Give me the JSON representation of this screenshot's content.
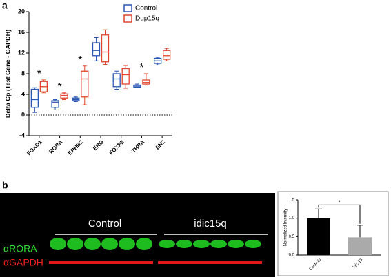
{
  "chart_data": [
    {
      "type": "box",
      "panel_label": "a",
      "y_label": "Delta Cp (Test Gene - GAPDH)",
      "categories": [
        "FOXO1",
        "RORA",
        "EPHB2",
        "ERG",
        "FOXP2",
        "THRA",
        "EN2"
      ],
      "series": [
        {
          "name": "Control",
          "color": "#2a56b4",
          "min": [
            0.5,
            1,
            2.6,
            10.5,
            5,
            5.3,
            9.7
          ],
          "q1": [
            1.5,
            1.5,
            2.8,
            11.5,
            5.5,
            5.4,
            10
          ],
          "median": [
            3,
            2.5,
            3,
            12.5,
            7,
            5.6,
            10.5
          ],
          "q3": [
            5,
            2.8,
            3.3,
            14,
            8,
            5.8,
            11
          ],
          "max": [
            5.3,
            3,
            3.5,
            15,
            8.5,
            6,
            11.2
          ]
        },
        {
          "name": "Dup15q",
          "color": "#e0452c",
          "min": [
            4.3,
            3,
            2,
            9.8,
            5.2,
            5.8,
            10.5
          ],
          "q1": [
            4.5,
            3.3,
            3.5,
            10.3,
            6,
            6,
            10.8
          ],
          "median": [
            5.5,
            3.8,
            7,
            12.2,
            7.8,
            6.3,
            11.5
          ],
          "q3": [
            6.5,
            4.1,
            8.5,
            15.5,
            9,
            6.8,
            12.5
          ],
          "max": [
            6.8,
            4.3,
            9.5,
            16.5,
            9.6,
            8,
            12.9
          ]
        }
      ],
      "annotations": [
        {
          "text": "*",
          "category": "FOXO1"
        },
        {
          "text": "*",
          "category": "RORA"
        },
        {
          "text": "*",
          "category": "EPHB2"
        },
        {
          "text": "*",
          "category": "THRA"
        }
      ],
      "reference_line": 0,
      "ylim": [
        -4,
        20
      ],
      "yticks": [
        -4,
        0,
        4,
        8,
        12,
        16,
        20
      ],
      "legend": "upper right"
    },
    {
      "type": "bar",
      "y_label": "Normalized Intensity",
      "categories": [
        "Controls",
        "Idic 15"
      ],
      "values": [
        1.0,
        0.48
      ],
      "errors": [
        0.25,
        0.33
      ],
      "colors": [
        "#000000",
        "#aaaaaa"
      ],
      "significance": "*",
      "ylim": [
        0,
        1.5
      ],
      "yticks": [
        {
          "value": 0,
          "label": "0.0"
        },
        {
          "value": 0.5,
          "label": "0.5"
        },
        {
          "value": 1,
          "label": "1.0"
        },
        {
          "value": 1.5,
          "label": "1.5"
        }
      ]
    }
  ],
  "blot": {
    "panel_label": "b",
    "groups": [
      "Control",
      "idic15q"
    ],
    "antibodies": [
      "αRORA",
      "αGAPDH"
    ]
  }
}
